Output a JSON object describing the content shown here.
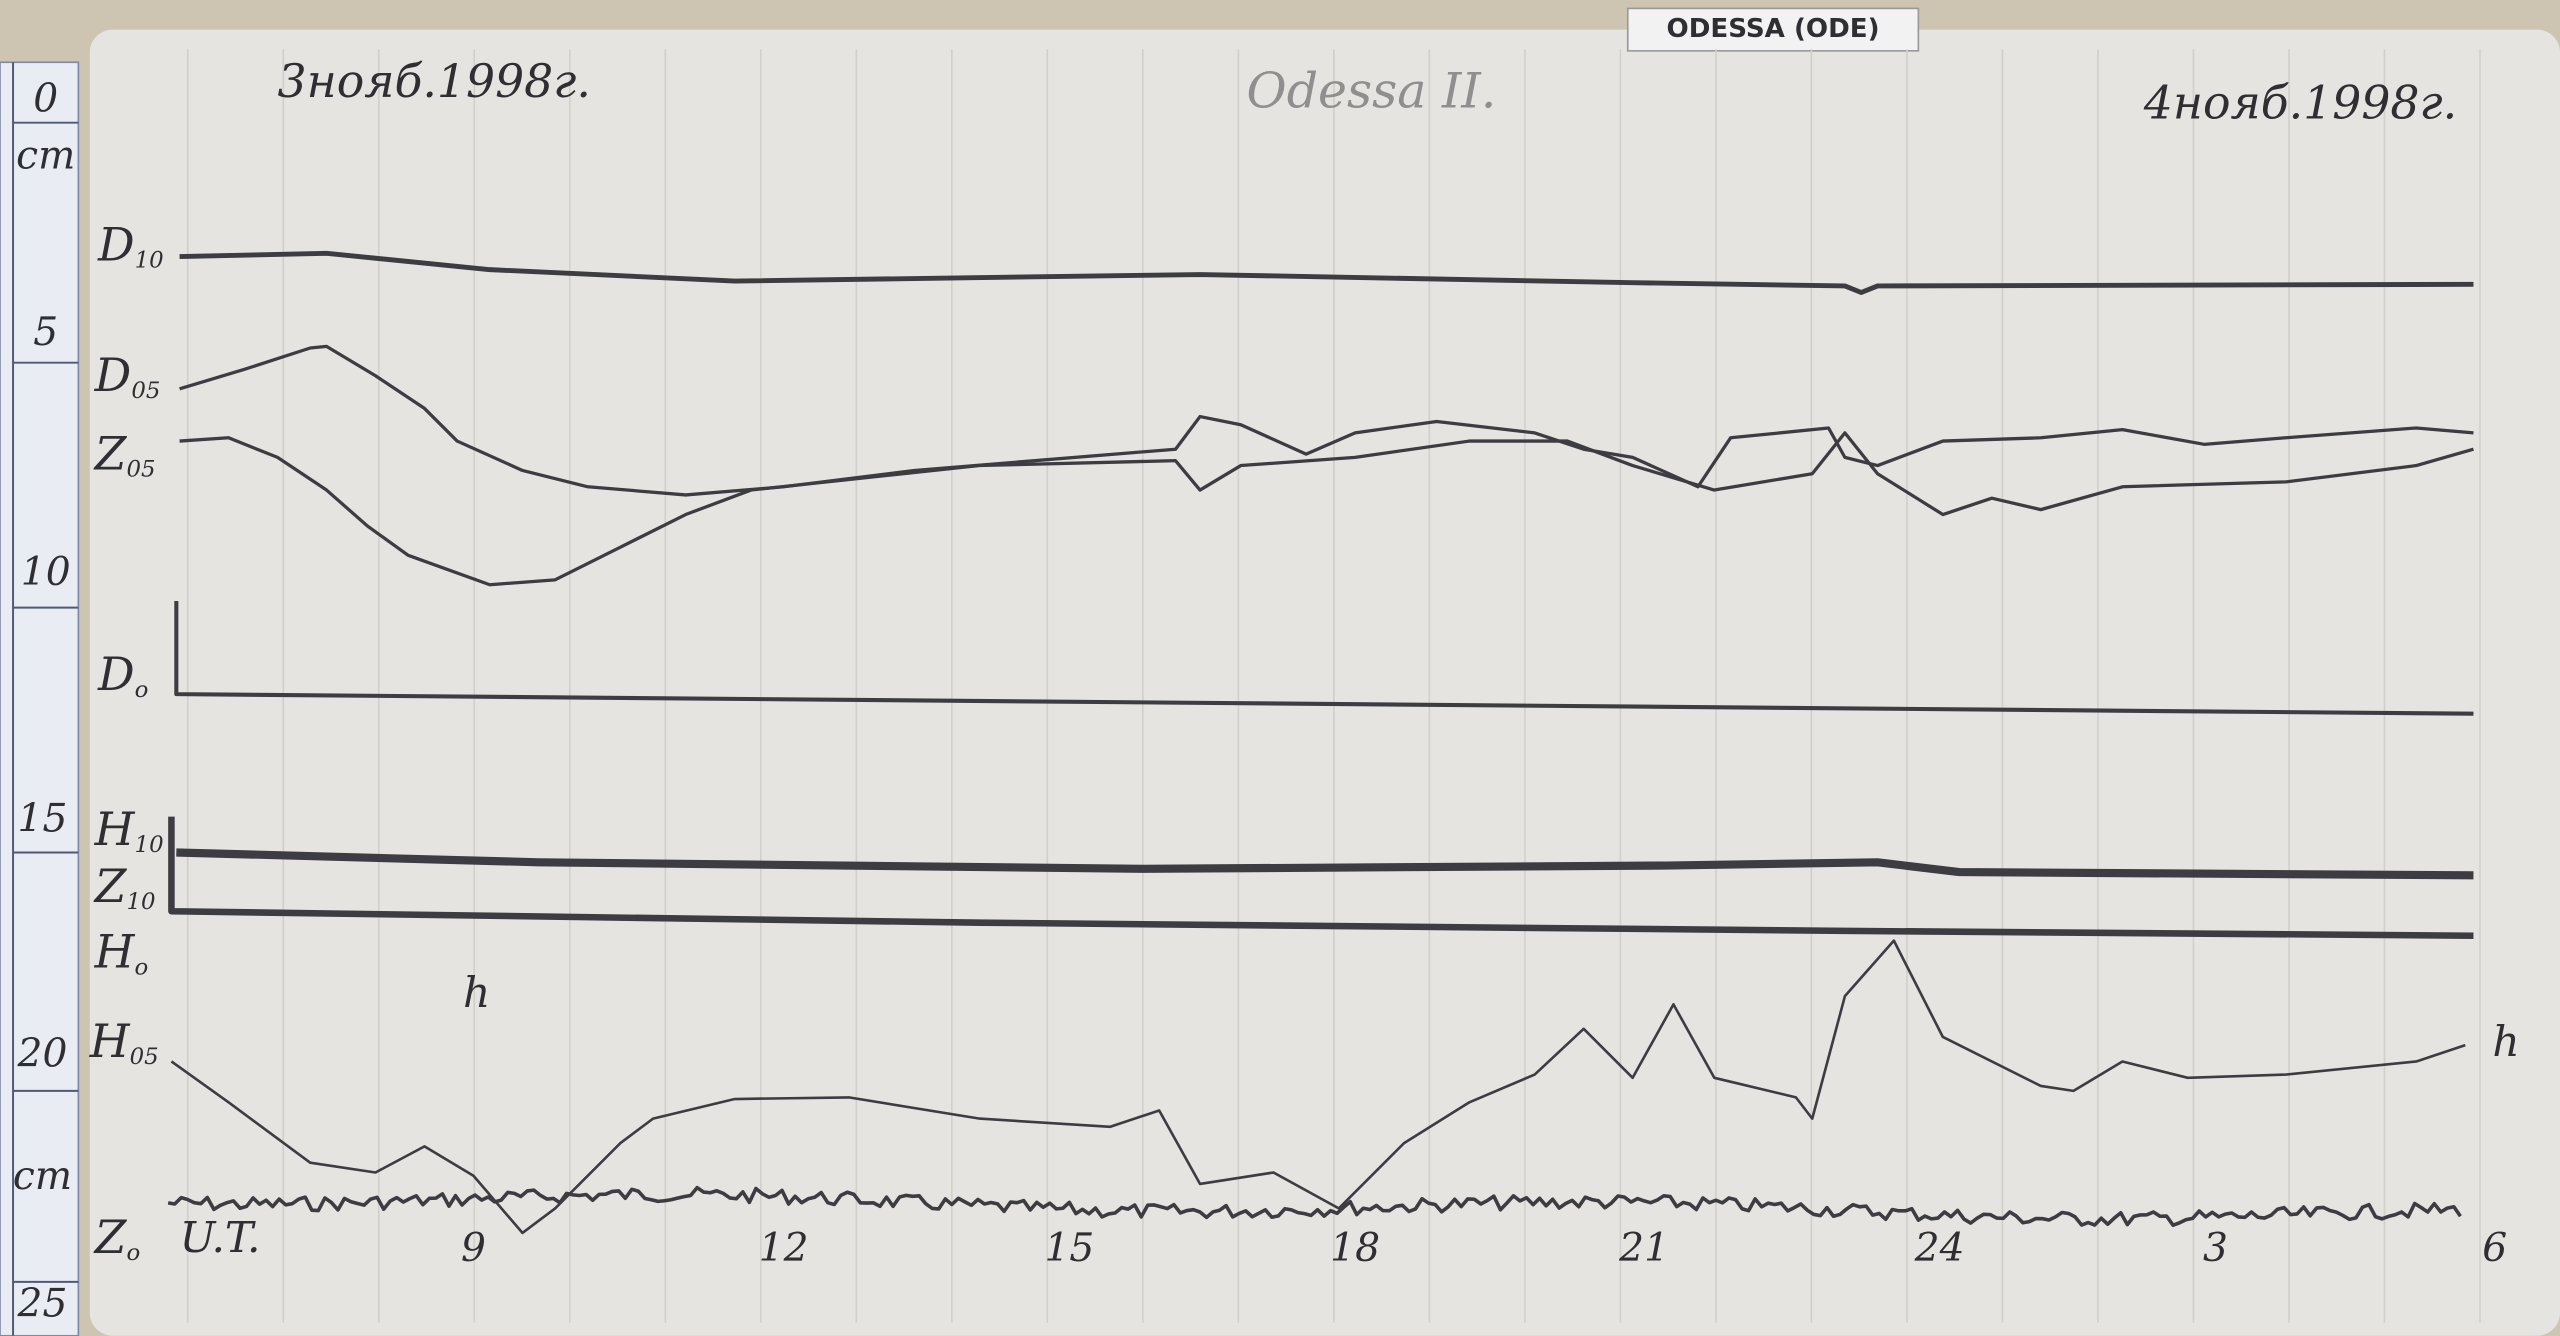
{
  "placard": "ODESSA (ODE)",
  "header": {
    "date_left": "3нояб.1998г.",
    "station": "Odessa II.",
    "date_right": "4нояб.1998г."
  },
  "ruler": {
    "labels": [
      "0",
      "cm",
      "5",
      "10",
      "15",
      "20",
      "cm",
      "25"
    ]
  },
  "traces": [
    {
      "letter": "D",
      "sub": "10"
    },
    {
      "letter": "D",
      "sub": "05"
    },
    {
      "letter": "Z",
      "sub": "05"
    },
    {
      "letter": "D",
      "sub": "o"
    },
    {
      "letter": "H",
      "sub": "10"
    },
    {
      "letter": "Z",
      "sub": "10"
    },
    {
      "letter": "H",
      "sub": "o"
    },
    {
      "letter": "H",
      "sub": "05"
    },
    {
      "letter": "Z",
      "sub": "o"
    }
  ],
  "time_axis": {
    "unit": "U.T.",
    "hours": [
      "9",
      "12",
      "15",
      "18",
      "21",
      "24",
      "3",
      "6"
    ],
    "h_marks": [
      "h",
      "h"
    ]
  }
}
